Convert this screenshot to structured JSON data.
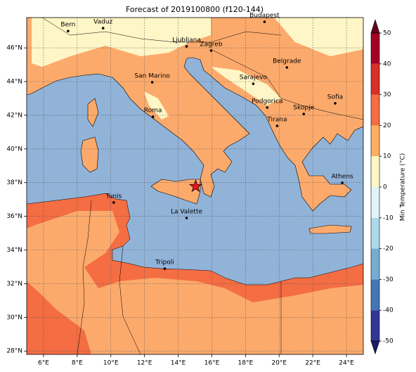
{
  "title": "Forecast of 2019100800 (f120-144)",
  "map": {
    "xlim": [
      5,
      25
    ],
    "ylim": [
      27.8,
      47.8
    ],
    "grid": true,
    "xticks": [
      {
        "value": 6,
        "label": "6°E"
      },
      {
        "value": 8,
        "label": "8°E"
      },
      {
        "value": 10,
        "label": "10°E"
      },
      {
        "value": 12,
        "label": "12°E"
      },
      {
        "value": 14,
        "label": "14°E"
      },
      {
        "value": 16,
        "label": "16°E"
      },
      {
        "value": 18,
        "label": "18°E"
      },
      {
        "value": 20,
        "label": "20°E"
      },
      {
        "value": 22,
        "label": "22°E"
      },
      {
        "value": 24,
        "label": "24°E"
      }
    ],
    "yticks": [
      {
        "value": 28,
        "label": "28°N"
      },
      {
        "value": 30,
        "label": "30°N"
      },
      {
        "value": 32,
        "label": "32°N"
      },
      {
        "value": 34,
        "label": "34°N"
      },
      {
        "value": 36,
        "label": "36°N"
      },
      {
        "value": 38,
        "label": "38°N"
      },
      {
        "value": 40,
        "label": "40°N"
      },
      {
        "value": 42,
        "label": "42°N"
      },
      {
        "value": 44,
        "label": "44°N"
      },
      {
        "value": 46,
        "label": "46°N"
      }
    ],
    "cities": [
      {
        "name": "Bern",
        "lon": 7.46,
        "lat": 47.0
      },
      {
        "name": "Vaduz",
        "lon": 9.54,
        "lat": 47.17
      },
      {
        "name": "Budapest",
        "lon": 19.13,
        "lat": 47.55
      },
      {
        "name": "Ljubljana",
        "lon": 14.5,
        "lat": 46.09
      },
      {
        "name": "Zagreb",
        "lon": 15.96,
        "lat": 45.84
      },
      {
        "name": "Belgrade",
        "lon": 20.46,
        "lat": 44.84
      },
      {
        "name": "San Marino",
        "lon": 12.46,
        "lat": 43.96
      },
      {
        "name": "Sarajevo",
        "lon": 18.46,
        "lat": 43.87
      },
      {
        "name": "Sofia",
        "lon": 23.33,
        "lat": 42.71
      },
      {
        "name": "Roma",
        "lon": 12.5,
        "lat": 41.91
      },
      {
        "name": "Podgorica",
        "lon": 19.29,
        "lat": 42.46
      },
      {
        "name": "Skopje",
        "lon": 21.46,
        "lat": 42.08
      },
      {
        "name": "Tirana",
        "lon": 19.88,
        "lat": 41.37
      },
      {
        "name": "Athens",
        "lon": 23.75,
        "lat": 37.99
      },
      {
        "name": "Tunis",
        "lon": 10.17,
        "lat": 36.82
      },
      {
        "name": "La Valette",
        "lon": 14.5,
        "lat": 35.9
      },
      {
        "name": "Tripoli",
        "lon": 13.2,
        "lat": 32.89
      }
    ],
    "event": {
      "lon": 15.04,
      "lat": 37.78,
      "color": "#e8141c"
    }
  },
  "colorbar": {
    "label": "Min Temperature (°C)",
    "lim": [
      -50,
      50
    ],
    "ticks": [
      -50,
      -40,
      -30,
      -20,
      -10,
      0,
      10,
      20,
      30,
      40,
      50
    ],
    "colors": [
      "#313695",
      "#4575b4",
      "#74add1",
      "#abd9e9",
      "#e0f3f8",
      "#fef6c6",
      "#fdae61",
      "#f46d43",
      "#d73027",
      "#a50026"
    ],
    "extend_colors": [
      "#1a1a6e",
      "#67001f"
    ]
  }
}
